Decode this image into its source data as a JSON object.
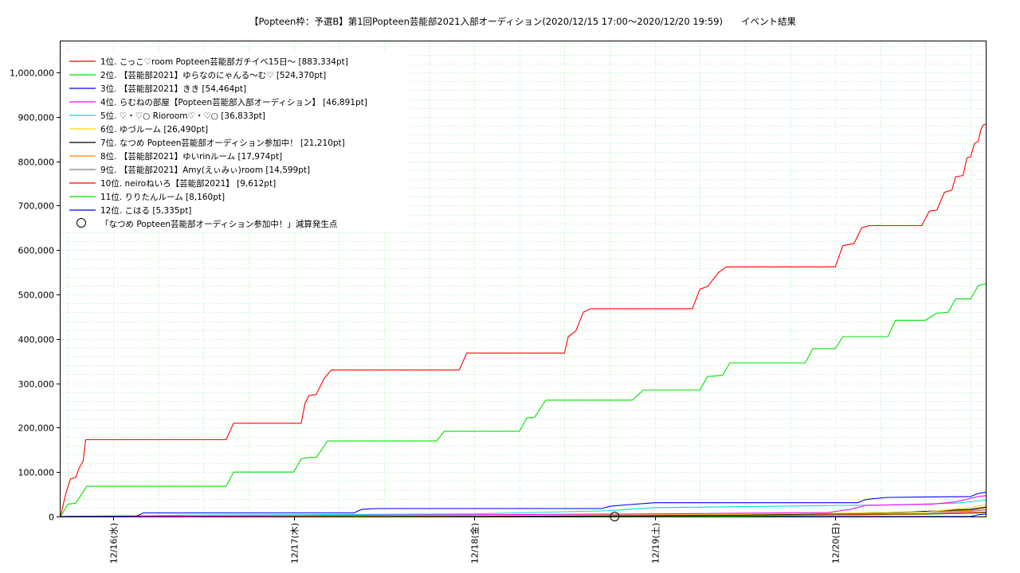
{
  "chart_data": {
    "type": "line",
    "title": "【Popteen枠：予選B】第1回Popteen芸能部2021入部オーディション(2020/12/15 17:00〜2020/12/20 19:59)　　イベント結果",
    "xlabel": "",
    "ylabel": "",
    "x_ticks": [
      {
        "label": "12/16(水)",
        "at": "2020-12-16T00:00"
      },
      {
        "label": "12/17(木)",
        "at": "2020-12-17T00:00"
      },
      {
        "label": "12/18(金)",
        "at": "2020-12-18T00:00"
      },
      {
        "label": "12/19(土)",
        "at": "2020-12-19T00:00"
      },
      {
        "label": "12/20(日)",
        "at": "2020-12-20T00:00"
      }
    ],
    "y_ticks": [
      "0",
      "100,000",
      "200,000",
      "300,000",
      "400,000",
      "500,000",
      "600,000",
      "700,000",
      "800,000",
      "900,000",
      "1,000,000"
    ],
    "xlim": [
      "2020-12-15T17:00",
      "2020-12-20T20:00"
    ],
    "ylim": [
      0,
      1070000
    ],
    "grid": true,
    "legend_position": "top-left",
    "series": [
      {
        "name": "1位. こっこ♡room Popteen芸能部ガチイベ15日〜 [883,334pt]",
        "color": "#ff0000",
        "points": [
          [
            "2020-12-15T17:00",
            0
          ],
          [
            "2020-12-15T17:40",
            50000
          ],
          [
            "2020-12-15T18:20",
            85000
          ],
          [
            "2020-12-15T19:00",
            88000
          ],
          [
            "2020-12-15T19:30",
            110000
          ],
          [
            "2020-12-15T20:00",
            125000
          ],
          [
            "2020-12-15T20:20",
            173000
          ],
          [
            "2020-12-16T15:00",
            173000
          ],
          [
            "2020-12-16T16:00",
            210000
          ],
          [
            "2020-12-17T01:00",
            210000
          ],
          [
            "2020-12-17T01:30",
            255000
          ],
          [
            "2020-12-17T02:00",
            272000
          ],
          [
            "2020-12-17T03:00",
            275000
          ],
          [
            "2020-12-17T04:00",
            310000
          ],
          [
            "2020-12-17T05:00",
            330000
          ],
          [
            "2020-12-17T22:00",
            330000
          ],
          [
            "2020-12-17T23:00",
            368000
          ],
          [
            "2020-12-18T12:00",
            368000
          ],
          [
            "2020-12-18T12:30",
            405000
          ],
          [
            "2020-12-18T13:30",
            418000
          ],
          [
            "2020-12-18T14:30",
            460000
          ],
          [
            "2020-12-18T15:30",
            468000
          ],
          [
            "2020-12-19T05:00",
            468000
          ],
          [
            "2020-12-19T06:00",
            512000
          ],
          [
            "2020-12-19T07:00",
            518000
          ],
          [
            "2020-12-19T08:30",
            550000
          ],
          [
            "2020-12-19T09:30",
            562000
          ],
          [
            "2020-12-20T00:00",
            562000
          ],
          [
            "2020-12-20T01:00",
            610000
          ],
          [
            "2020-12-20T02:30",
            615000
          ],
          [
            "2020-12-20T03:30",
            650000
          ],
          [
            "2020-12-20T04:30",
            655000
          ],
          [
            "2020-12-20T11:30",
            655000
          ],
          [
            "2020-12-20T12:30",
            688000
          ],
          [
            "2020-12-20T13:30",
            690000
          ],
          [
            "2020-12-20T14:30",
            730000
          ],
          [
            "2020-12-20T15:30",
            735000
          ],
          [
            "2020-12-20T16:00",
            765000
          ],
          [
            "2020-12-20T17:00",
            768000
          ],
          [
            "2020-12-20T17:30",
            808000
          ],
          [
            "2020-12-20T18:00",
            810000
          ],
          [
            "2020-12-20T18:30",
            840000
          ],
          [
            "2020-12-20T19:00",
            845000
          ],
          [
            "2020-12-20T19:20",
            870000
          ],
          [
            "2020-12-20T19:40",
            882000
          ],
          [
            "2020-12-20T20:00",
            883334
          ]
        ]
      },
      {
        "name": "2位. 【芸能部2021】ゆらなのにゃんる〜む♡ [524,370pt]",
        "color": "#00e000",
        "points": [
          [
            "2020-12-15T17:00",
            0
          ],
          [
            "2020-12-15T18:00",
            28000
          ],
          [
            "2020-12-15T19:00",
            30000
          ],
          [
            "2020-12-15T20:30",
            68000
          ],
          [
            "2020-12-16T15:00",
            68000
          ],
          [
            "2020-12-16T16:00",
            100000
          ],
          [
            "2020-12-17T00:00",
            100000
          ],
          [
            "2020-12-17T01:00",
            130000
          ],
          [
            "2020-12-17T02:00",
            133000
          ],
          [
            "2020-12-17T03:00",
            133000
          ],
          [
            "2020-12-17T04:30",
            170000
          ],
          [
            "2020-12-17T19:00",
            170000
          ],
          [
            "2020-12-17T20:00",
            192000
          ],
          [
            "2020-12-18T06:00",
            192000
          ],
          [
            "2020-12-18T07:00",
            222000
          ],
          [
            "2020-12-18T08:00",
            223000
          ],
          [
            "2020-12-18T09:30",
            262000
          ],
          [
            "2020-12-18T21:00",
            262000
          ],
          [
            "2020-12-18T22:30",
            285000
          ],
          [
            "2020-12-19T06:00",
            285000
          ],
          [
            "2020-12-19T07:00",
            315000
          ],
          [
            "2020-12-19T09:00",
            318000
          ],
          [
            "2020-12-19T10:00",
            346000
          ],
          [
            "2020-12-19T20:00",
            346000
          ],
          [
            "2020-12-19T21:00",
            378000
          ],
          [
            "2020-12-20T00:00",
            378000
          ],
          [
            "2020-12-20T01:00",
            405000
          ],
          [
            "2020-12-20T07:00",
            405000
          ],
          [
            "2020-12-20T08:00",
            442000
          ],
          [
            "2020-12-20T12:00",
            442000
          ],
          [
            "2020-12-20T13:30",
            458000
          ],
          [
            "2020-12-20T15:00",
            460000
          ],
          [
            "2020-12-20T16:00",
            490000
          ],
          [
            "2020-12-20T18:00",
            490000
          ],
          [
            "2020-12-20T19:00",
            520000
          ],
          [
            "2020-12-20T20:00",
            524370
          ]
        ]
      },
      {
        "name": "3位. 【芸能部2021】きき [54,464pt]",
        "color": "#0000ff",
        "points": [
          [
            "2020-12-15T17:00",
            0
          ],
          [
            "2020-12-16T03:00",
            0
          ],
          [
            "2020-12-16T04:00",
            8000
          ],
          [
            "2020-12-16T09:00",
            8000
          ],
          [
            "2020-12-17T08:00",
            8000
          ],
          [
            "2020-12-17T09:00",
            16000
          ],
          [
            "2020-12-17T11:00",
            18000
          ],
          [
            "2020-12-18T17:00",
            18000
          ],
          [
            "2020-12-18T18:00",
            23000
          ],
          [
            "2020-12-18T20:00",
            26000
          ],
          [
            "2020-12-19T00:00",
            31000
          ],
          [
            "2020-12-20T03:00",
            31000
          ],
          [
            "2020-12-20T04:00",
            38000
          ],
          [
            "2020-12-20T05:00",
            40000
          ],
          [
            "2020-12-20T07:00",
            43000
          ],
          [
            "2020-12-20T18:00",
            45000
          ],
          [
            "2020-12-20T19:00",
            52000
          ],
          [
            "2020-12-20T20:00",
            54464
          ]
        ]
      },
      {
        "name": "4位. らむねの部屋【Popteen芸能部入部オーディション】 [46,891pt]",
        "color": "#ff00ff",
        "points": [
          [
            "2020-12-15T17:00",
            0
          ],
          [
            "2020-12-17T00:00",
            2000
          ],
          [
            "2020-12-18T00:00",
            4000
          ],
          [
            "2020-12-19T00:00",
            6000
          ],
          [
            "2020-12-19T23:00",
            9000
          ],
          [
            "2020-12-20T02:00",
            16000
          ],
          [
            "2020-12-20T04:00",
            25000
          ],
          [
            "2020-12-20T13:00",
            28000
          ],
          [
            "2020-12-20T16:00",
            33000
          ],
          [
            "2020-12-20T19:00",
            45000
          ],
          [
            "2020-12-20T20:00",
            46891
          ]
        ]
      },
      {
        "name": "5位. ♡・♡○ Rioroom♡・♡○ [36,833pt]",
        "color": "#00e0e0",
        "points": [
          [
            "2020-12-15T17:00",
            0
          ],
          [
            "2020-12-16T10:00",
            3000
          ],
          [
            "2020-12-18T00:00",
            6000
          ],
          [
            "2020-12-18T18:00",
            13000
          ],
          [
            "2020-12-19T00:00",
            20000
          ],
          [
            "2020-12-20T07:00",
            26000
          ],
          [
            "2020-12-20T16:00",
            30000
          ],
          [
            "2020-12-20T19:00",
            35000
          ],
          [
            "2020-12-20T20:00",
            36833
          ]
        ]
      },
      {
        "name": "6位. ゆづルーム [26,490pt]",
        "color": "#ffd700",
        "points": [
          [
            "2020-12-15T17:00",
            0
          ],
          [
            "2020-12-18T00:00",
            2000
          ],
          [
            "2020-12-19T12:00",
            5000
          ],
          [
            "2020-12-20T12:00",
            10000
          ],
          [
            "2020-12-20T18:00",
            20000
          ],
          [
            "2020-12-20T20:00",
            26490
          ]
        ]
      },
      {
        "name": "7位. なつめ Popteen芸能部オーディション参加中！ [21,210pt]",
        "color": "#000000",
        "points": [
          [
            "2020-12-15T17:00",
            0
          ],
          [
            "2020-12-18T00:00",
            1000
          ],
          [
            "2020-12-19T12:00",
            3000
          ],
          [
            "2020-12-20T10:00",
            10000
          ],
          [
            "2020-12-20T18:00",
            16000
          ],
          [
            "2020-12-20T20:00",
            21210
          ]
        ]
      },
      {
        "name": "8位. 【芸能部2021】ゆいrinルーム [17,974pt]",
        "color": "#ff8000",
        "points": [
          [
            "2020-12-15T17:00",
            0
          ],
          [
            "2020-12-18T12:00",
            2000
          ],
          [
            "2020-12-20T00:00",
            6000
          ],
          [
            "2020-12-20T18:00",
            14000
          ],
          [
            "2020-12-20T20:00",
            17974
          ]
        ]
      },
      {
        "name": "9位. 【芸能部2021】Amy(えぃみぃ)room [14,599pt]",
        "color": "#808080",
        "points": [
          [
            "2020-12-15T17:00",
            0
          ],
          [
            "2020-12-18T12:00",
            2000
          ],
          [
            "2020-12-20T00:00",
            5000
          ],
          [
            "2020-12-20T18:00",
            12000
          ],
          [
            "2020-12-20T20:00",
            14599
          ]
        ]
      },
      {
        "name": "10位. neiroねいろ【芸能部2021】 [9,612pt]",
        "color": "#ff0000",
        "points": [
          [
            "2020-12-15T17:00",
            0
          ],
          [
            "2020-12-19T00:00",
            2000
          ],
          [
            "2020-12-20T12:00",
            6000
          ],
          [
            "2020-12-20T20:00",
            9612
          ]
        ]
      },
      {
        "name": "11位. りりたんルーム [8,160pt]",
        "color": "#00e000",
        "points": [
          [
            "2020-12-15T17:00",
            0
          ],
          [
            "2020-12-19T12:00",
            1000
          ],
          [
            "2020-12-20T12:00",
            5000
          ],
          [
            "2020-12-20T20:00",
            8160
          ]
        ]
      },
      {
        "name": "12位. こはる [5,335pt]",
        "color": "#0000ff",
        "points": [
          [
            "2020-12-15T17:00",
            0
          ],
          [
            "2020-12-20T18:00",
            0
          ],
          [
            "2020-12-20T19:00",
            4000
          ],
          [
            "2020-12-20T20:00",
            5335
          ]
        ]
      }
    ],
    "markers": [
      {
        "label": "「なつめ Popteen芸能部オーディション参加中！」減算発生点",
        "points": [
          [
            "2020-12-18T18:40",
            0
          ]
        ]
      }
    ]
  }
}
